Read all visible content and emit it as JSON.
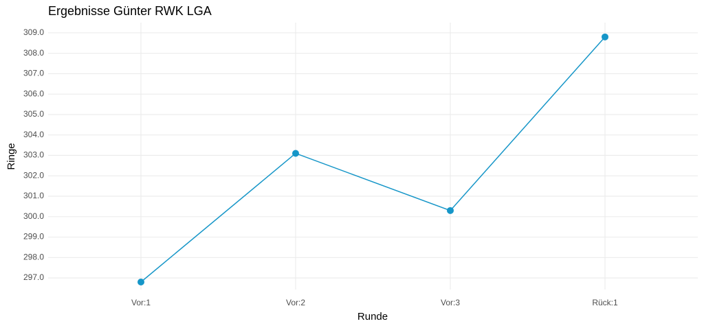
{
  "chart_data": {
    "type": "line",
    "title": "Ergebnisse Günter RWK LGA",
    "x_label": "Runde",
    "y_label": "Ringe",
    "categories": [
      "Vor:1",
      "Vor:2",
      "Vor:3",
      "Rück:1"
    ],
    "series": [
      {
        "name": "Ringe",
        "color": "#1696c8",
        "values": [
          296.8,
          303.1,
          300.3,
          308.8
        ]
      }
    ],
    "ylim": [
      296.43,
      309.5
    ],
    "yticks": [
      {
        "value": 297,
        "label": "297.0"
      },
      {
        "value": 298,
        "label": "298.0"
      },
      {
        "value": 299,
        "label": "299.0"
      },
      {
        "value": 300,
        "label": "300.0"
      },
      {
        "value": 301,
        "label": "301.0"
      },
      {
        "value": 302,
        "label": "302.0"
      },
      {
        "value": 303,
        "label": "303.0"
      },
      {
        "value": 304,
        "label": "304.0"
      },
      {
        "value": 305,
        "label": "305.0"
      },
      {
        "value": 306,
        "label": "306.0"
      },
      {
        "value": 307,
        "label": "307.0"
      },
      {
        "value": 308,
        "label": "308.0"
      },
      {
        "value": 309,
        "label": "309.0"
      }
    ],
    "grid": true
  }
}
